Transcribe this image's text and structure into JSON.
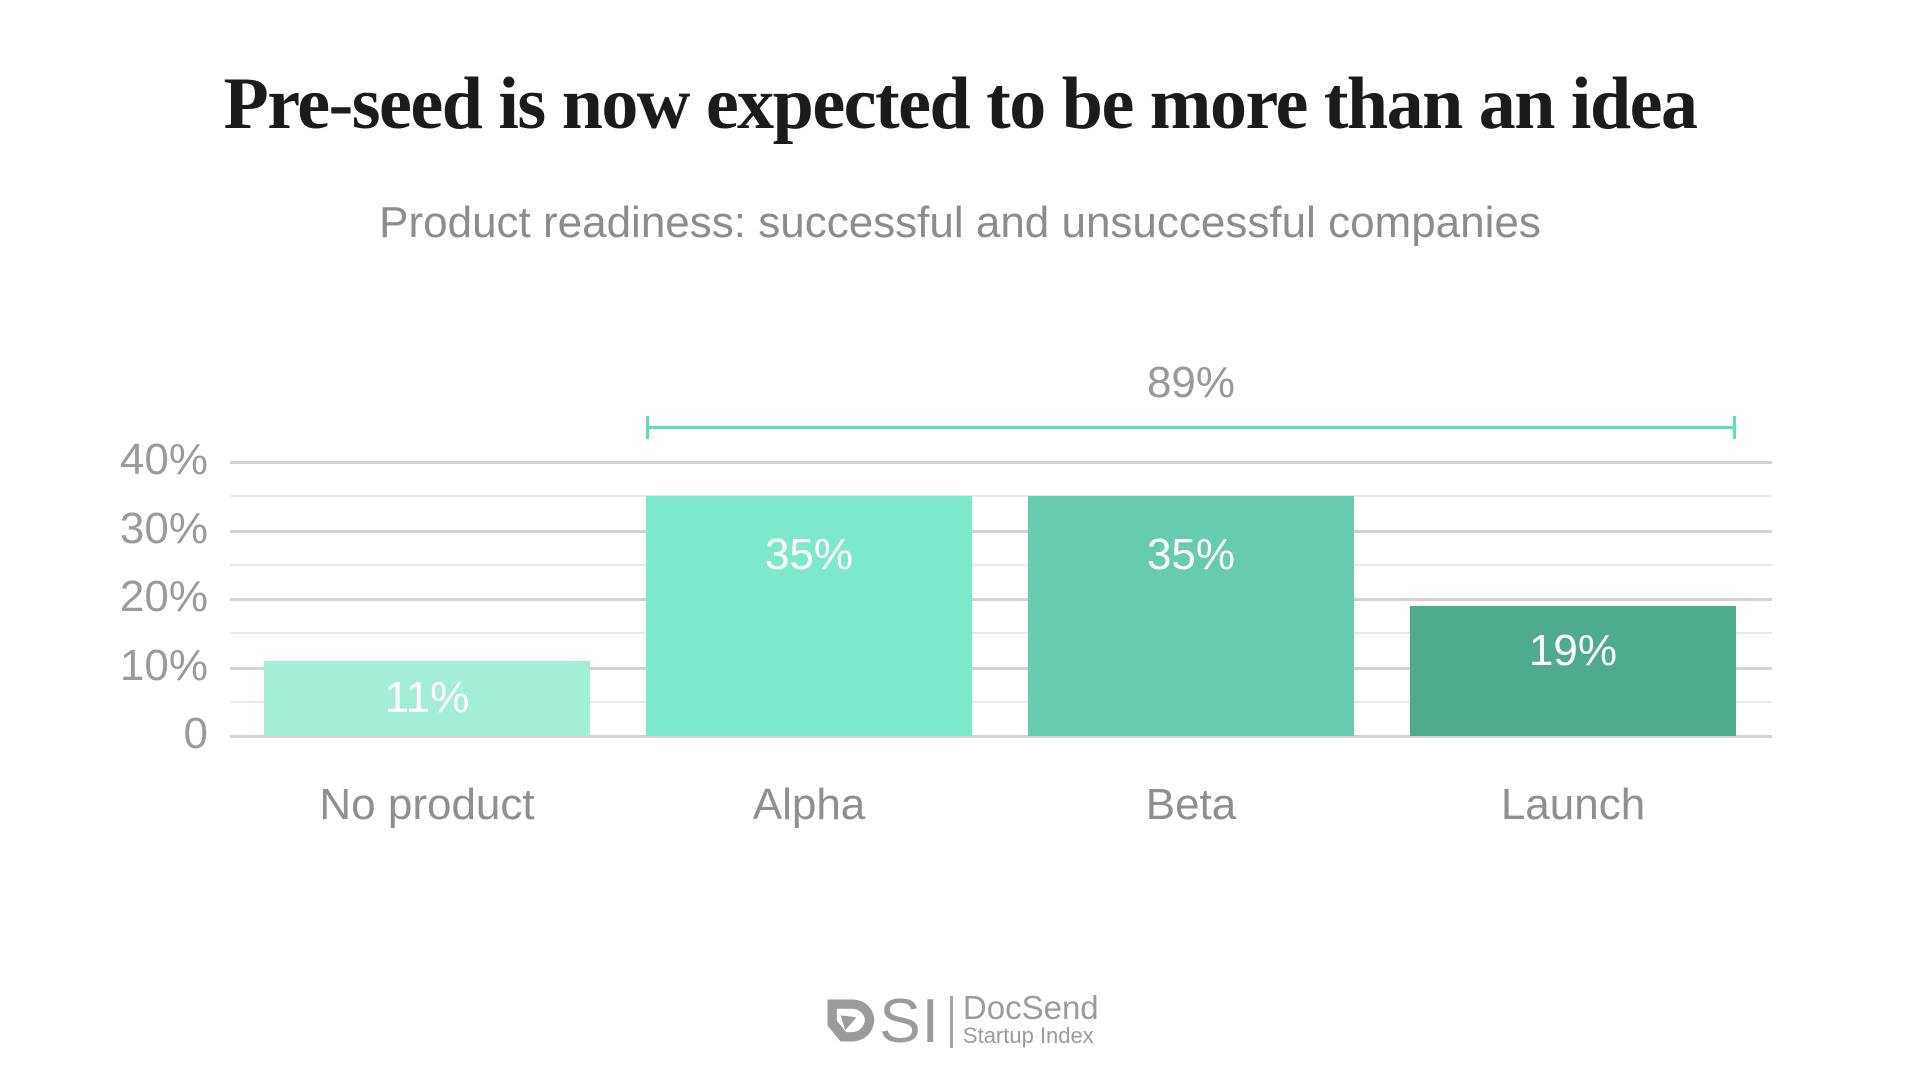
{
  "slide": {
    "title": "Pre-seed is now expected to be more than an idea",
    "subtitle": "Product readiness: successful and unsuccessful companies"
  },
  "chart_data": {
    "type": "bar",
    "categories": [
      "No product",
      "Alpha",
      "Beta",
      "Launch"
    ],
    "values": [
      11,
      35,
      35,
      19
    ],
    "value_labels": [
      "11%",
      "35%",
      "35%",
      "19%"
    ],
    "bar_colors": [
      "#a4edd7",
      "#7de8cb",
      "#66cbaf",
      "#4eab8e"
    ],
    "title": "Pre-seed is now expected to be more than an idea",
    "subtitle": "Product readiness: successful and unsuccessful companies",
    "xlabel": "",
    "ylabel": "",
    "ylim": [
      0,
      40
    ],
    "y_major_ticks": [
      {
        "label": "40%",
        "value": 40
      },
      {
        "label": "30%",
        "value": 30
      },
      {
        "label": "20%",
        "value": 20
      },
      {
        "label": "10%",
        "value": 10
      },
      {
        "label": "0",
        "value": 0
      }
    ],
    "y_minor_step": 5,
    "grid": "horizontal gridlines every 5%, labels every 10%",
    "legend": "none",
    "annotation": {
      "label": "89%",
      "from_category": "Alpha",
      "to_category": "Launch",
      "meaning": "Alpha + Beta + Launch combined share",
      "color": "#5eddbb"
    }
  },
  "logo": {
    "letters": "SI",
    "name": "DocSend",
    "sub": "Startup Index"
  },
  "colors": {
    "background": "#ffffff",
    "title_text": "#1b1b1b",
    "subtitle_text": "#8c8c8c",
    "axis_text": "#9b9b9b",
    "category_text": "#8f8f8f",
    "value_text": "#ffffff",
    "grid_major": "#d3d3d3",
    "grid_minor": "#e9e9e9",
    "logo_gray": "#9b9b9b"
  }
}
